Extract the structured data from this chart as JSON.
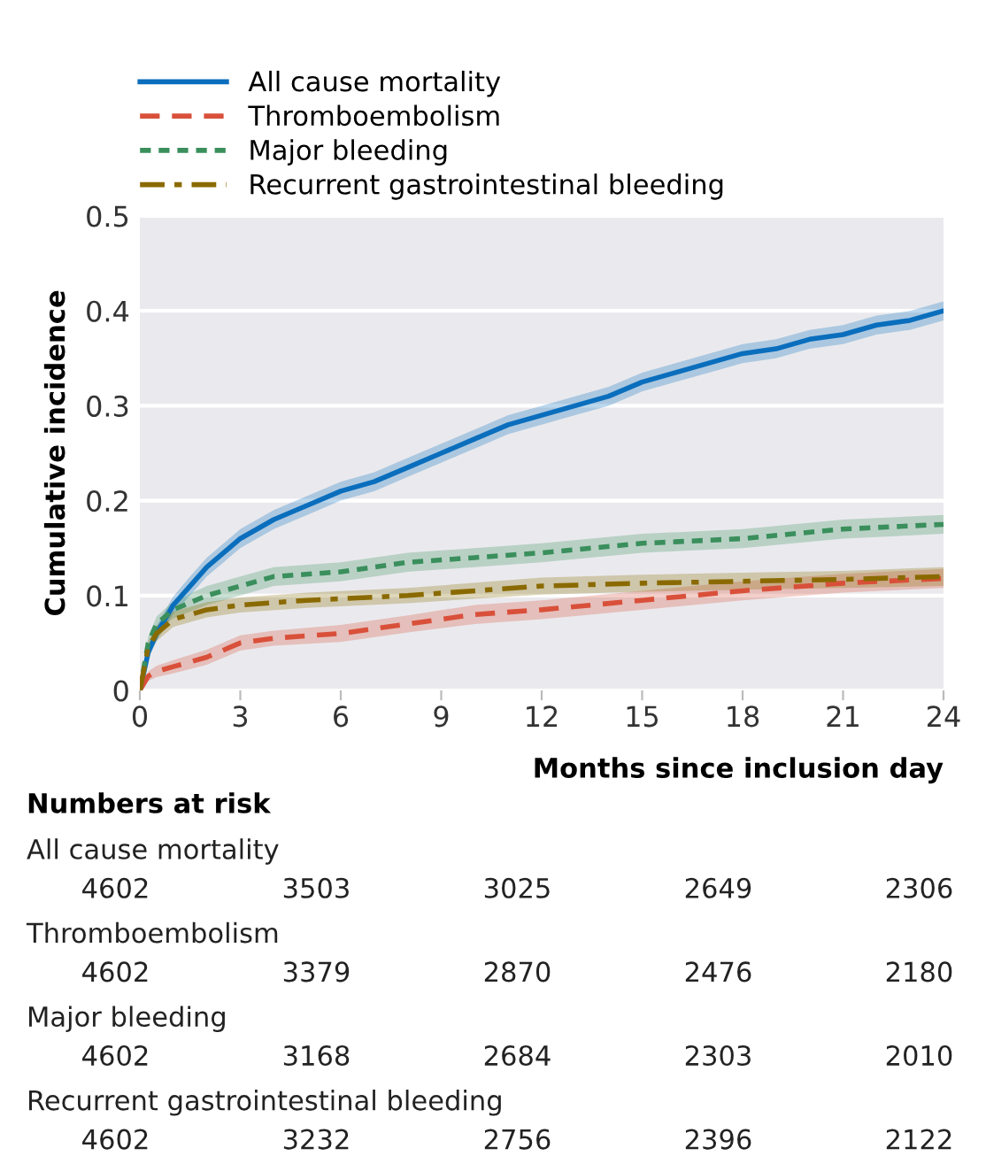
{
  "chart_data": {
    "type": "line",
    "xlabel": "Months since inclusion day",
    "ylabel": "Cumulative incidence",
    "xlim": [
      0,
      24
    ],
    "xticks": [
      0,
      3,
      6,
      9,
      12,
      15,
      18,
      21,
      24
    ],
    "ylim": [
      0,
      0.5
    ],
    "yticks": [
      0,
      0.1,
      0.2,
      0.3,
      0.4,
      0.5
    ],
    "grid": "y",
    "legend": "top left",
    "marker": "none",
    "series": [
      {
        "name": "All cause mortality",
        "color": "#0a6ebd",
        "line_style": "solid",
        "x": [
          0,
          0.25,
          0.5,
          1,
          1.5,
          2,
          3,
          4,
          5,
          6,
          7,
          8,
          9,
          10,
          11,
          12,
          13,
          14,
          15,
          16,
          17,
          18,
          19,
          20,
          21,
          22,
          23,
          24
        ],
        "values": [
          0,
          0.04,
          0.06,
          0.09,
          0.11,
          0.13,
          0.16,
          0.18,
          0.195,
          0.21,
          0.22,
          0.235,
          0.25,
          0.265,
          0.28,
          0.29,
          0.3,
          0.31,
          0.325,
          0.335,
          0.345,
          0.355,
          0.36,
          0.37,
          0.375,
          0.385,
          0.39,
          0.4
        ],
        "lower": [
          0,
          0.033,
          0.052,
          0.081,
          0.1,
          0.12,
          0.15,
          0.17,
          0.185,
          0.2,
          0.21,
          0.225,
          0.24,
          0.255,
          0.27,
          0.28,
          0.29,
          0.3,
          0.315,
          0.325,
          0.335,
          0.345,
          0.35,
          0.36,
          0.365,
          0.375,
          0.38,
          0.39
        ],
        "upper": [
          0,
          0.047,
          0.068,
          0.099,
          0.12,
          0.14,
          0.17,
          0.19,
          0.205,
          0.22,
          0.23,
          0.245,
          0.26,
          0.275,
          0.29,
          0.3,
          0.31,
          0.32,
          0.335,
          0.345,
          0.355,
          0.365,
          0.37,
          0.38,
          0.385,
          0.395,
          0.4,
          0.41
        ]
      },
      {
        "name": "Thromboembolism",
        "color": "#d9503a",
        "line_style": "dashed",
        "x": [
          0,
          0.25,
          0.5,
          1,
          2,
          3,
          4,
          6,
          8,
          10,
          12,
          15,
          18,
          21,
          24
        ],
        "values": [
          0,
          0.015,
          0.02,
          0.025,
          0.035,
          0.05,
          0.055,
          0.06,
          0.07,
          0.08,
          0.085,
          0.095,
          0.105,
          0.113,
          0.118
        ],
        "lower": [
          0,
          0.01,
          0.014,
          0.018,
          0.027,
          0.042,
          0.047,
          0.051,
          0.061,
          0.07,
          0.075,
          0.085,
          0.095,
          0.103,
          0.108
        ],
        "upper": [
          0,
          0.02,
          0.026,
          0.032,
          0.043,
          0.058,
          0.063,
          0.069,
          0.079,
          0.09,
          0.095,
          0.105,
          0.115,
          0.123,
          0.128
        ]
      },
      {
        "name": "Major bleeding",
        "color": "#3a8f5c",
        "line_style": "dotted",
        "x": [
          0,
          0.25,
          0.5,
          1,
          2,
          3,
          4,
          6,
          8,
          10,
          12,
          15,
          18,
          21,
          24
        ],
        "values": [
          0,
          0.05,
          0.07,
          0.085,
          0.1,
          0.11,
          0.12,
          0.125,
          0.135,
          0.14,
          0.145,
          0.155,
          0.16,
          0.17,
          0.175
        ],
        "lower": [
          0,
          0.043,
          0.062,
          0.076,
          0.09,
          0.1,
          0.11,
          0.115,
          0.125,
          0.13,
          0.135,
          0.145,
          0.15,
          0.16,
          0.165
        ],
        "upper": [
          0,
          0.057,
          0.078,
          0.094,
          0.11,
          0.12,
          0.13,
          0.135,
          0.145,
          0.15,
          0.155,
          0.165,
          0.17,
          0.18,
          0.185
        ]
      },
      {
        "name": "Recurrent gastrointestinal bleeding",
        "color": "#8a6a00",
        "line_style": "dashdot",
        "x": [
          0,
          0.25,
          0.5,
          1,
          2,
          3,
          5,
          8,
          12,
          15,
          18,
          21,
          24
        ],
        "values": [
          0,
          0.045,
          0.06,
          0.075,
          0.085,
          0.09,
          0.095,
          0.1,
          0.11,
          0.113,
          0.115,
          0.117,
          0.12
        ],
        "lower": [
          0,
          0.038,
          0.052,
          0.067,
          0.077,
          0.082,
          0.087,
          0.092,
          0.101,
          0.104,
          0.106,
          0.108,
          0.11
        ],
        "upper": [
          0,
          0.052,
          0.068,
          0.083,
          0.093,
          0.098,
          0.103,
          0.108,
          0.119,
          0.122,
          0.124,
          0.126,
          0.13
        ]
      }
    ],
    "annotations": [
      "Numbers at risk",
      "All cause mortality",
      "4602",
      "3503",
      "3025",
      "2649",
      "2306",
      "Thromboembolism",
      "4602",
      "3379",
      "2870",
      "2476",
      "2180",
      "Major bleeding",
      "4602",
      "3168",
      "2684",
      "2303",
      "2010",
      "Recurrent gastrointestinal bleeding",
      "4602",
      "3232",
      "2756",
      "2396",
      "2122"
    ]
  }
}
